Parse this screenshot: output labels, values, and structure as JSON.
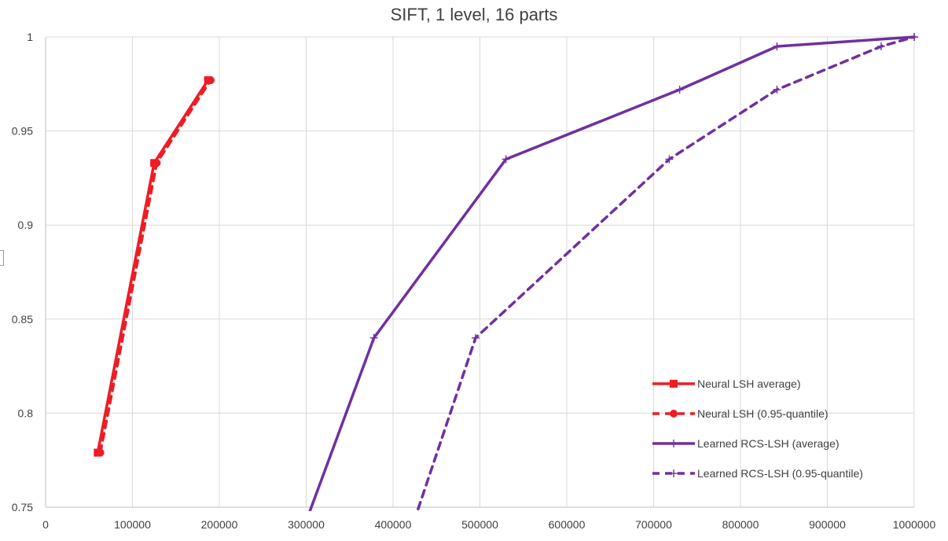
{
  "chart_data": {
    "type": "line",
    "title": "SIFT, 1 level, 16 parts",
    "xlabel": "",
    "ylabel": "",
    "xlim": [
      0,
      1000000
    ],
    "ylim": [
      0.75,
      1
    ],
    "x_ticks": [
      0,
      100000,
      200000,
      300000,
      400000,
      500000,
      600000,
      700000,
      800000,
      900000,
      1000000
    ],
    "y_ticks": [
      0.75,
      0.8,
      0.85,
      0.9,
      0.95,
      1
    ],
    "x_tick_labels": [
      "0",
      "100000",
      "200000",
      "300000",
      "400000",
      "500000",
      "600000",
      "700000",
      "800000",
      "900000",
      "1000000"
    ],
    "y_tick_labels": [
      "0.75",
      "0.8",
      "0.85",
      "0.9",
      "0.95",
      "1"
    ],
    "grid": true,
    "legend_position": "bottom-right",
    "series": [
      {
        "name": "Neural LSH average)",
        "color": "#ee1c24",
        "dash": "solid",
        "marker": "square",
        "points": [
          [
            60000,
            0.779
          ],
          [
            125000,
            0.933
          ],
          [
            187000,
            0.977
          ]
        ]
      },
      {
        "name": "Neural LSH (0.95-quantile)",
        "color": "#ee1c24",
        "dash": "dashed",
        "marker": "circle",
        "points": [
          [
            63000,
            0.779
          ],
          [
            128000,
            0.933
          ],
          [
            190000,
            0.977
          ]
        ]
      },
      {
        "name": "Learned RCS-LSH (average)",
        "color": "#7030a0",
        "dash": "solid",
        "marker": "plus",
        "points": [
          [
            290000,
            0.73
          ],
          [
            378000,
            0.84
          ],
          [
            530000,
            0.935
          ],
          [
            730000,
            0.972
          ],
          [
            842000,
            0.995
          ],
          [
            1000000,
            1.0
          ]
        ]
      },
      {
        "name": "Learned RCS-LSH (0.95-quantile)",
        "color": "#7030a0",
        "dash": "dashed",
        "marker": "plus",
        "points": [
          [
            415000,
            0.73
          ],
          [
            495000,
            0.84
          ],
          [
            718000,
            0.935
          ],
          [
            842000,
            0.972
          ],
          [
            962000,
            0.995
          ],
          [
            1000000,
            1.0
          ]
        ]
      }
    ]
  }
}
